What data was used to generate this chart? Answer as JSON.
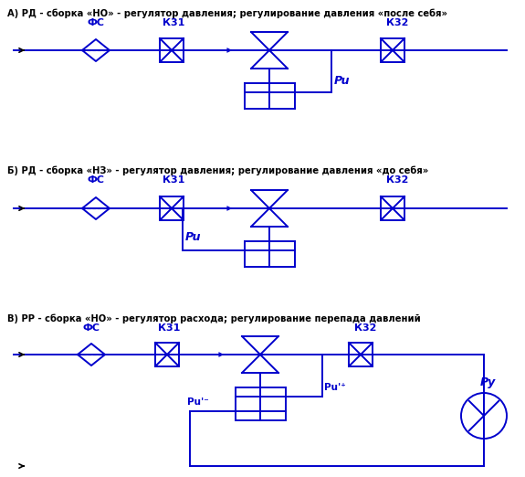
{
  "blue": "#0000CC",
  "black": "#000000",
  "bg": "#FFFFFF",
  "title_A": "А) РД - сборка «НО» - регулятор давления; регулирование давления «после себя»",
  "title_B": "Б) РД - сборка «НЗ» - регулятор давления; регулирование давления «до себя»",
  "title_C": "В) РР - сборка «НО» - регулятор расхода; регулирование перепада давлений",
  "label_FC": "ФС",
  "label_K31": "К31",
  "label_K32": "К32",
  "label_Pu": "Pu",
  "label_Py": "Py",
  "label_Pu_minus": "Pu'⁻",
  "label_Pu_plus": "Pu'⁺"
}
